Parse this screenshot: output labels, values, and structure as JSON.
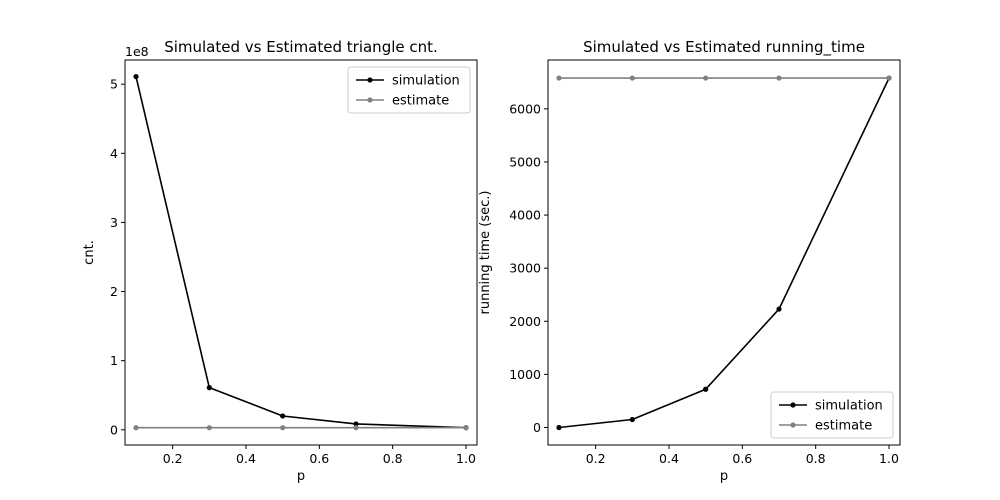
{
  "chart_data": [
    {
      "type": "line",
      "title": "Simulated vs Estimated triangle cnt.",
      "xlabel": "p",
      "ylabel": "cnt.",
      "offset_text": "1e8",
      "xlim": [
        0.07,
        1.03
      ],
      "ylim": [
        -22000000.0,
        535000000.0
      ],
      "xticks": [
        0.2,
        0.4,
        0.6,
        0.8,
        1.0
      ],
      "xtick_labels": [
        "0.2",
        "0.4",
        "0.6",
        "0.8",
        "1.0"
      ],
      "yticks": [
        0,
        100000000,
        200000000,
        300000000,
        400000000,
        500000000
      ],
      "ytick_labels": [
        "0",
        "1",
        "2",
        "3",
        "4",
        "5"
      ],
      "legend_position": "top-right",
      "grid": false,
      "series": [
        {
          "name": "simulation",
          "color": "#000000",
          "x": [
            0.1,
            0.3,
            0.5,
            0.7,
            1.0
          ],
          "y": [
            511000000,
            61000000,
            20000000,
            8500000,
            3000000
          ]
        },
        {
          "name": "estimate",
          "color": "#808080",
          "x": [
            0.1,
            0.3,
            0.5,
            0.7,
            1.0
          ],
          "y": [
            3000000,
            3000000,
            3000000,
            3000000,
            3000000
          ]
        }
      ]
    },
    {
      "type": "line",
      "title": "Simulated vs Estimated running_time",
      "xlabel": "p",
      "ylabel": "running time (sec.)",
      "offset_text": "",
      "xlim": [
        0.07,
        1.03
      ],
      "ylim": [
        -330,
        6920
      ],
      "xticks": [
        0.2,
        0.4,
        0.6,
        0.8,
        1.0
      ],
      "xtick_labels": [
        "0.2",
        "0.4",
        "0.6",
        "0.8",
        "1.0"
      ],
      "yticks": [
        0,
        1000,
        2000,
        3000,
        4000,
        5000,
        6000
      ],
      "ytick_labels": [
        "0",
        "1000",
        "2000",
        "3000",
        "4000",
        "5000",
        "6000"
      ],
      "legend_position": "bottom-right",
      "grid": false,
      "series": [
        {
          "name": "simulation",
          "color": "#000000",
          "x": [
            0.1,
            0.3,
            0.5,
            0.7,
            1.0
          ],
          "y": [
            0,
            150,
            720,
            2230,
            6580
          ]
        },
        {
          "name": "estimate",
          "color": "#808080",
          "x": [
            0.1,
            0.3,
            0.5,
            0.7,
            1.0
          ],
          "y": [
            6580,
            6580,
            6580,
            6580,
            6580
          ]
        }
      ]
    }
  ]
}
